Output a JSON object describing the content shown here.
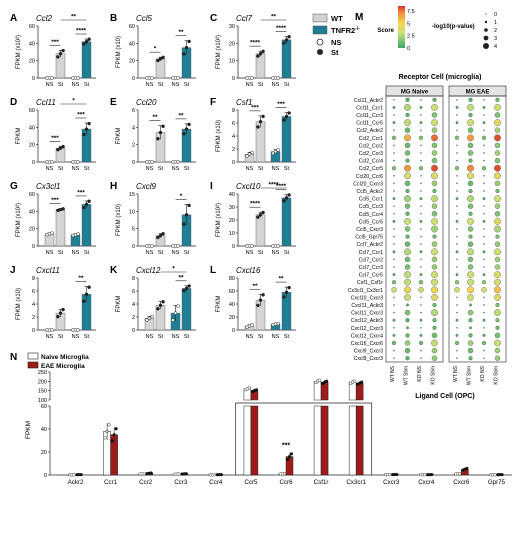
{
  "legend": {
    "wt": "WT",
    "ko": "TNFR2",
    "ko_sup": "-/-",
    "ns": "NS",
    "st": "St",
    "colors": {
      "wt": "#d4d4d4",
      "ko": "#1f7f95",
      "naive": "#ffffff",
      "eae": "#9e1b1b"
    }
  },
  "chart_data": [
    {
      "panel": "A",
      "type": "bar",
      "gene": "Ccl2",
      "ylabel": "FPKM (x10²)",
      "ticks": [
        0,
        20,
        40,
        60
      ],
      "ylim": [
        0,
        60
      ],
      "values": [
        0,
        28,
        0,
        42
      ],
      "err": [
        0,
        4,
        0,
        3
      ],
      "sig": [
        {
          "a": 0,
          "b": 1,
          "t": "***"
        },
        {
          "a": 2,
          "b": 3,
          "t": "****"
        },
        {
          "a": 1,
          "b": 3,
          "t": "**",
          "top": true
        }
      ]
    },
    {
      "panel": "B",
      "type": "bar",
      "gene": "Ccl5",
      "ylabel": "FPKM (x10)",
      "ticks": [
        0,
        20,
        40,
        60
      ],
      "ylim": [
        0,
        60
      ],
      "values": [
        0,
        22,
        0,
        35
      ],
      "err": [
        0,
        2,
        0,
        8
      ],
      "sig": [
        {
          "a": 0,
          "b": 1,
          "t": "*"
        },
        {
          "a": 2,
          "b": 3,
          "t": "**"
        }
      ]
    },
    {
      "panel": "C",
      "type": "bar",
      "gene": "Ccl7",
      "ylabel": "FPKM (x10²)",
      "ticks": [
        0,
        10,
        20,
        30
      ],
      "ylim": [
        0,
        30
      ],
      "values": [
        0,
        14,
        0,
        22
      ],
      "err": [
        0,
        1.5,
        0,
        2
      ],
      "sig": [
        {
          "a": 0,
          "b": 1,
          "t": "****"
        },
        {
          "a": 2,
          "b": 3,
          "t": "****"
        },
        {
          "a": 1,
          "b": 3,
          "t": "**",
          "top": true
        }
      ]
    },
    {
      "panel": "D",
      "type": "bar",
      "gene": "Ccl11",
      "ylabel": "FPKM",
      "ticks": [
        0,
        20,
        40,
        60
      ],
      "ylim": [
        0,
        60
      ],
      "values": [
        0,
        16,
        0,
        38
      ],
      "err": [
        0,
        2,
        0,
        7
      ],
      "sig": [
        {
          "a": 0,
          "b": 1,
          "t": "***"
        },
        {
          "a": 2,
          "b": 3,
          "t": "***"
        },
        {
          "a": 1,
          "b": 3,
          "t": "*",
          "top": true
        }
      ]
    },
    {
      "panel": "E",
      "type": "bar",
      "gene": "Ccl20",
      "ylabel": "FPKM",
      "ticks": [
        0,
        2,
        4,
        6
      ],
      "ylim": [
        0,
        6
      ],
      "values": [
        0,
        3.4,
        0,
        3.8
      ],
      "err": [
        0,
        0.8,
        0,
        0.6
      ],
      "sig": [
        {
          "a": 0,
          "b": 1,
          "t": "**"
        },
        {
          "a": 2,
          "b": 3,
          "t": "**"
        }
      ]
    },
    {
      "panel": "F",
      "type": "bar",
      "gene": "Csf1",
      "ylabel": "FPKM (x10)",
      "ticks": [
        0,
        2,
        4,
        6,
        8
      ],
      "ylim": [
        0,
        8
      ],
      "values": [
        1.2,
        6.2,
        1.6,
        7.0
      ],
      "err": [
        0.3,
        0.9,
        0.3,
        0.6
      ],
      "sig": [
        {
          "a": 0,
          "b": 1,
          "t": "***"
        },
        {
          "a": 2,
          "b": 3,
          "t": "***"
        }
      ]
    },
    {
      "panel": "G",
      "type": "bar",
      "gene": "Cx3cl1",
      "ylabel": "FPKM (x10²)",
      "ticks": [
        0,
        20,
        40,
        60
      ],
      "ylim": [
        0,
        60
      ],
      "values": [
        14,
        42,
        13,
        48
      ],
      "err": [
        1,
        1,
        1,
        4
      ],
      "sig": [
        {
          "a": 0,
          "b": 1,
          "t": "***"
        },
        {
          "a": 2,
          "b": 3,
          "t": "***"
        }
      ]
    },
    {
      "panel": "H",
      "type": "bar",
      "gene": "Cxcl9",
      "ylabel": "FPKM (x10)",
      "ticks": [
        0,
        5,
        10,
        15
      ],
      "ylim": [
        0,
        15
      ],
      "values": [
        0,
        3,
        0,
        9
      ],
      "err": [
        0,
        0.6,
        0,
        3
      ],
      "sig": [
        {
          "a": 2,
          "b": 3,
          "t": "*"
        }
      ]
    },
    {
      "panel": "I",
      "type": "bar",
      "gene": "Cxcl10",
      "ylabel": "FPKM (x10²)",
      "ticks": [
        0,
        10,
        20,
        30,
        40
      ],
      "ylim": [
        0,
        40
      ],
      "values": [
        0,
        24,
        0,
        37
      ],
      "err": [
        0,
        2,
        0,
        2.5
      ],
      "sig": [
        {
          "a": 0,
          "b": 1,
          "t": "****"
        },
        {
          "a": 2,
          "b": 3,
          "t": "****"
        },
        {
          "a": 1,
          "b": 3,
          "t": "****",
          "top": true
        }
      ]
    },
    {
      "panel": "J",
      "type": "bar",
      "gene": "Cxcl11",
      "ylabel": "FPKM (x10)",
      "ticks": [
        0,
        2,
        4,
        6,
        8
      ],
      "ylim": [
        0,
        8
      ],
      "values": [
        0,
        2.6,
        0,
        5.5
      ],
      "err": [
        0,
        0.6,
        0,
        1.2
      ],
      "sig": [
        {
          "a": 2,
          "b": 3,
          "t": "**"
        }
      ]
    },
    {
      "panel": "K",
      "type": "bar",
      "gene": "Cxcl12",
      "ylabel": "FPKM",
      "ticks": [
        0,
        2,
        4,
        6,
        8
      ],
      "ylim": [
        0,
        8
      ],
      "values": [
        1.8,
        3.8,
        2.6,
        6.4
      ],
      "err": [
        0.3,
        0.6,
        1.2,
        0.4
      ],
      "sig": [
        {
          "a": 2,
          "b": 3,
          "t": "**"
        },
        {
          "a": 1,
          "b": 3,
          "t": "*",
          "top": true
        }
      ]
    },
    {
      "panel": "L",
      "type": "bar",
      "gene": "Cxcl16",
      "ylabel": "FPKM",
      "ticks": [
        0,
        20,
        40,
        60,
        80
      ],
      "ylim": [
        0,
        80
      ],
      "values": [
        6,
        46,
        9,
        58
      ],
      "err": [
        2,
        9,
        1,
        8
      ],
      "sig": [
        {
          "a": 0,
          "b": 1,
          "t": "**"
        },
        {
          "a": 2,
          "b": 3,
          "t": "**"
        }
      ]
    },
    {
      "panel": "M",
      "type": "heatmap",
      "title": "Receptor Cell (microglia)",
      "groups": [
        "MG Naive",
        "MG EAE"
      ],
      "xlabel": "Ligand Cell (OPC)",
      "columns": [
        "WT NS",
        "WT Stim",
        "KO NS",
        "KO Stim"
      ],
      "rows": [
        "Ccl11_Ackr2",
        "Ccl11_Ccr1",
        "Ccl11_Ccr3",
        "Ccl11_Ccr5",
        "Ccl2_Ackr2",
        "Ccl2_Ccr1",
        "Ccl2_Ccr2",
        "Ccl2_Ccr3",
        "Ccl2_Ccr4",
        "Ccl2_Ccr5",
        "Ccl20_Ccr6",
        "Ccl20_Cxcr3",
        "Ccl5_Ackr2",
        "Ccl5_Ccr1",
        "Ccl5_Ccr3",
        "Ccl5_Ccr4",
        "Ccl5_Ccr5",
        "Ccl5_Cxcr3",
        "Ccl5_Gpr75",
        "Ccl7_Ackr2",
        "Ccl7_Ccr1",
        "Ccl7_Ccr2",
        "Ccl7_Ccr3",
        "Ccl7_Ccr5",
        "Csf1_Csf1r",
        "Cx3cl1_Cx3cr1",
        "Cxcl10_Cxcr3",
        "Cxcl11_Ackr3",
        "Cxcl11_Cxcr3",
        "Cxcl12_Ackr3",
        "Cxcl12_Cxcr3",
        "Cxcl12_Cxcr4",
        "Cxcl16_Cxcr6",
        "Cxcl9_Cxcr3",
        "Cxcl9_Cxcr3"
      ],
      "colorbar_label": "Score",
      "colorbar_ticks": [
        0,
        2.5,
        5,
        7.5
      ],
      "size_label": "-log10(p-value)",
      "size_ticks": [
        0,
        1,
        2,
        3,
        4
      ],
      "score": [
        [
          0.3,
          0.6,
          0.3,
          0.9,
          0.3,
          0.6,
          0.3,
          0.9
        ],
        [
          0.5,
          2.5,
          0.5,
          3.5,
          0.5,
          2.8,
          0.5,
          3.5
        ],
        [
          0.2,
          0.8,
          0.2,
          1.4,
          0.2,
          0.8,
          0.2,
          1.4
        ],
        [
          0.5,
          2.8,
          0.5,
          3.5,
          0.5,
          3.2,
          0.5,
          4.0
        ],
        [
          0.2,
          1.0,
          0.2,
          2.0,
          0.2,
          1.2,
          0.2,
          2.2
        ],
        [
          1.5,
          6.0,
          1.5,
          7.5,
          1.5,
          6.5,
          1.5,
          8.0
        ],
        [
          0.2,
          1.0,
          0.2,
          1.6,
          0.2,
          1.2,
          0.2,
          1.8
        ],
        [
          0.2,
          1.3,
          0.2,
          2.0,
          0.2,
          1.5,
          0.2,
          2.2
        ],
        [
          0.2,
          0.8,
          0.2,
          1.5,
          0.2,
          1.0,
          0.2,
          1.6
        ],
        [
          1.5,
          6.5,
          1.5,
          8.0,
          1.5,
          7.0,
          1.5,
          8.0
        ],
        [
          0.2,
          3.5,
          0.2,
          3.8,
          0.2,
          3.8,
          0.2,
          4.0
        ],
        [
          0.2,
          1.0,
          0.2,
          2.0,
          0.2,
          1.0,
          0.2,
          2.0
        ],
        [
          0.2,
          0.8,
          0.2,
          1.0,
          0.2,
          1.0,
          0.2,
          1.2
        ],
        [
          0.5,
          2.2,
          0.5,
          2.8,
          0.5,
          2.5,
          0.5,
          3.2
        ],
        [
          0.2,
          1.2,
          0.2,
          2.0,
          0.2,
          1.4,
          0.2,
          2.2
        ],
        [
          0.2,
          0.8,
          0.2,
          1.4,
          0.2,
          1.0,
          0.2,
          1.5
        ],
        [
          0.5,
          3.0,
          0.5,
          3.5,
          0.5,
          3.2,
          0.5,
          3.8
        ],
        [
          0.2,
          1.5,
          0.2,
          2.2,
          0.2,
          1.6,
          0.2,
          2.4
        ],
        [
          0.2,
          0.8,
          0.2,
          1.2,
          0.2,
          1.0,
          0.2,
          1.4
        ],
        [
          0.3,
          1.0,
          0.3,
          2.0,
          0.3,
          1.2,
          0.3,
          2.0
        ],
        [
          0.5,
          2.5,
          0.5,
          3.2,
          0.5,
          2.8,
          0.5,
          3.5
        ],
        [
          0.3,
          1.2,
          0.3,
          2.0,
          0.3,
          1.4,
          0.3,
          2.2
        ],
        [
          0.3,
          1.3,
          0.3,
          2.0,
          0.3,
          1.5,
          0.3,
          2.2
        ],
        [
          0.5,
          2.8,
          0.5,
          3.5,
          0.5,
          3.0,
          0.5,
          3.8
        ],
        [
          1.5,
          2.8,
          1.5,
          3.2,
          1.8,
          3.0,
          1.8,
          3.5
        ],
        [
          3.0,
          4.5,
          3.0,
          4.8,
          3.5,
          5.0,
          3.5,
          5.5
        ],
        [
          0.3,
          3.0,
          0.3,
          3.8,
          0.3,
          3.2,
          0.3,
          4.0
        ],
        [
          0.2,
          0.6,
          0.2,
          1.2,
          0.2,
          0.8,
          0.2,
          1.4
        ],
        [
          0.2,
          1.5,
          0.2,
          2.5,
          0.2,
          1.8,
          0.2,
          2.8
        ],
        [
          0.5,
          0.8,
          0.5,
          1.2,
          0.5,
          1.0,
          0.5,
          1.5
        ],
        [
          0.3,
          0.6,
          0.4,
          1.0,
          0.3,
          0.8,
          0.4,
          1.2
        ],
        [
          0.5,
          0.8,
          0.5,
          1.2,
          0.5,
          1.0,
          0.5,
          1.4
        ],
        [
          1.2,
          2.0,
          1.2,
          2.8,
          1.4,
          2.2,
          1.4,
          3.0
        ],
        [
          0.2,
          1.0,
          0.2,
          2.0,
          0.2,
          1.2,
          0.2,
          2.2
        ],
        [
          0.2,
          0.8,
          0.2,
          1.8,
          0.2,
          1.0,
          0.2,
          2.0
        ]
      ],
      "pval": [
        [
          0,
          2,
          0,
          2,
          0,
          2,
          0,
          2
        ],
        [
          1,
          4,
          1,
          4,
          1,
          4,
          1,
          4
        ],
        [
          0,
          2,
          0,
          3,
          0,
          2,
          0,
          3
        ],
        [
          1,
          4,
          1,
          4,
          1,
          4,
          1,
          4
        ],
        [
          0,
          3,
          0,
          3,
          0,
          3,
          0,
          3
        ],
        [
          2,
          4,
          2,
          4,
          2,
          4,
          2,
          4
        ],
        [
          0,
          3,
          0,
          3,
          0,
          3,
          0,
          3
        ],
        [
          0,
          3,
          0,
          3,
          0,
          3,
          0,
          3
        ],
        [
          0,
          2,
          0,
          3,
          0,
          2,
          0,
          3
        ],
        [
          2,
          4,
          2,
          4,
          2,
          4,
          2,
          4
        ],
        [
          0,
          4,
          0,
          4,
          0,
          4,
          0,
          4
        ],
        [
          0,
          3,
          0,
          3,
          0,
          3,
          0,
          3
        ],
        [
          0,
          2,
          0,
          2,
          0,
          2,
          0,
          2
        ],
        [
          1,
          4,
          1,
          4,
          1,
          4,
          1,
          4
        ],
        [
          0,
          3,
          0,
          3,
          0,
          3,
          0,
          3
        ],
        [
          0,
          2,
          0,
          3,
          0,
          2,
          0,
          3
        ],
        [
          1,
          4,
          1,
          4,
          1,
          4,
          1,
          4
        ],
        [
          0,
          3,
          0,
          4,
          0,
          3,
          0,
          4
        ],
        [
          0,
          2,
          0,
          2,
          0,
          2,
          0,
          2
        ],
        [
          0,
          3,
          0,
          3,
          0,
          3,
          0,
          3
        ],
        [
          1,
          4,
          1,
          4,
          1,
          4,
          1,
          4
        ],
        [
          0,
          3,
          0,
          3,
          0,
          3,
          0,
          3
        ],
        [
          0,
          3,
          0,
          3,
          0,
          3,
          0,
          3
        ],
        [
          1,
          4,
          1,
          4,
          1,
          4,
          1,
          4
        ],
        [
          2,
          4,
          2,
          4,
          2,
          4,
          2,
          4
        ],
        [
          3,
          4,
          3,
          4,
          3,
          4,
          3,
          4
        ],
        [
          0,
          4,
          0,
          4,
          0,
          4,
          0,
          4
        ],
        [
          0,
          1,
          0,
          2,
          0,
          1,
          0,
          2
        ],
        [
          0,
          3,
          0,
          4,
          0,
          3,
          0,
          4
        ],
        [
          1,
          2,
          1,
          2,
          1,
          2,
          1,
          2
        ],
        [
          0,
          1,
          0,
          2,
          0,
          1,
          0,
          2
        ],
        [
          1,
          2,
          1,
          3,
          1,
          2,
          1,
          3
        ],
        [
          2,
          3,
          2,
          4,
          2,
          3,
          2,
          4
        ],
        [
          0,
          3,
          0,
          3,
          0,
          3,
          0,
          3
        ],
        [
          0,
          2,
          0,
          3,
          0,
          2,
          0,
          3
        ]
      ]
    },
    {
      "panel": "N",
      "type": "bar",
      "ylabel": "FPKM",
      "legend": [
        "Naive Microglia",
        "EAE Microglia"
      ],
      "categories": [
        "Ackr2",
        "Ccr1",
        "Ccr2",
        "Ccr3",
        "Ccr4",
        "Ccr5",
        "Ccr6",
        "Csf1r",
        "Cx3cr1",
        "Cxcr3",
        "Cxcr4",
        "Cxcr6",
        "Gpr75"
      ],
      "series": [
        {
          "name": "Naive Microglia",
          "values": [
            0.2,
            38,
            1,
            0.8,
            0.2,
            160,
            1,
            200,
            195,
            0.3,
            0.3,
            1,
            0.2
          ]
        },
        {
          "name": "EAE Microglia",
          "values": [
            0.3,
            35,
            1.5,
            1,
            0.3,
            150,
            16,
            195,
            190,
            0.4,
            0.3,
            5,
            0.3
          ]
        }
      ],
      "ticks_low": [
        0,
        20,
        40,
        60
      ],
      "ticks_high": [
        100,
        150,
        200,
        250
      ],
      "sig": [
        {
          "cat": 6,
          "t": "***"
        }
      ]
    }
  ]
}
